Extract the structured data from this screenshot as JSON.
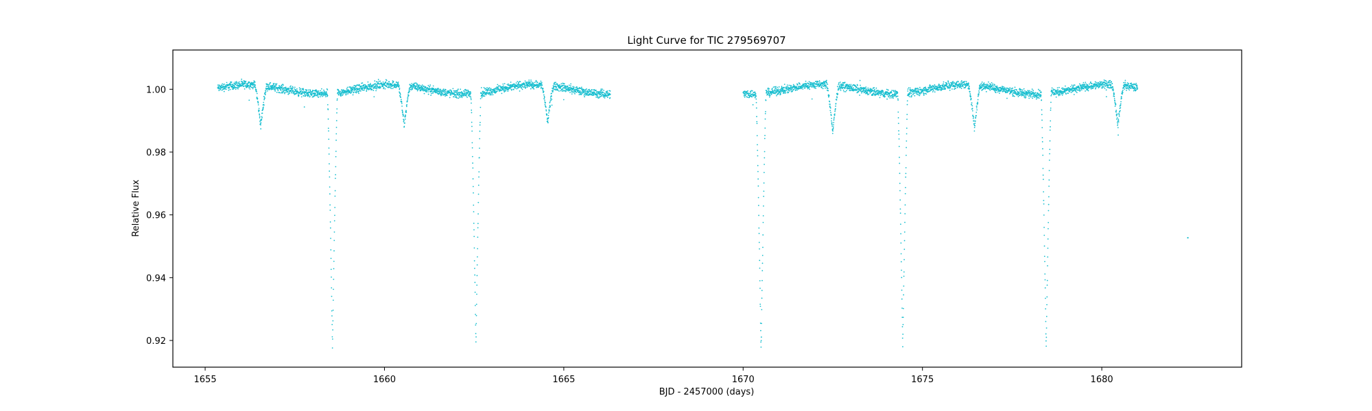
{
  "chart_data": {
    "type": "scatter",
    "title": "Light Curve for TIC 279569707",
    "xlabel": "BJD - 2457000 (days)",
    "ylabel": "Relative Flux",
    "xlim": [
      1654.1,
      1683.9
    ],
    "ylim": [
      0.9115,
      1.0125
    ],
    "xticks": [
      1655,
      1660,
      1665,
      1670,
      1675,
      1680
    ],
    "yticks": [
      0.92,
      0.94,
      0.96,
      0.98,
      1.0
    ],
    "ytick_labels": [
      "0.92",
      "0.94",
      "0.96",
      "0.98",
      "1.00"
    ],
    "grid": false,
    "marker_color": "#17becf",
    "series": [
      {
        "segments": [
          [
            1655.35,
            1666.3
          ],
          [
            1670.0,
            1681.0
          ]
        ],
        "primary_eclipses": [
          {
            "t": 1658.55,
            "depth": 0.081
          },
          {
            "t": 1662.55,
            "depth": 0.08
          },
          {
            "t": 1670.5,
            "depth": 0.082
          },
          {
            "t": 1674.45,
            "depth": 0.081
          },
          {
            "t": 1678.45,
            "depth": 0.081
          }
        ],
        "secondary_eclipses": [
          {
            "t": 1656.55,
            "depth": 0.013
          },
          {
            "t": 1660.55,
            "depth": 0.013
          },
          {
            "t": 1664.55,
            "depth": 0.012
          },
          {
            "t": 1672.5,
            "depth": 0.015
          },
          {
            "t": 1676.45,
            "depth": 0.014
          },
          {
            "t": 1680.45,
            "depth": 0.013
          }
        ],
        "outliers": [
          [
            1682.4,
            0.9527
          ]
        ]
      }
    ]
  }
}
